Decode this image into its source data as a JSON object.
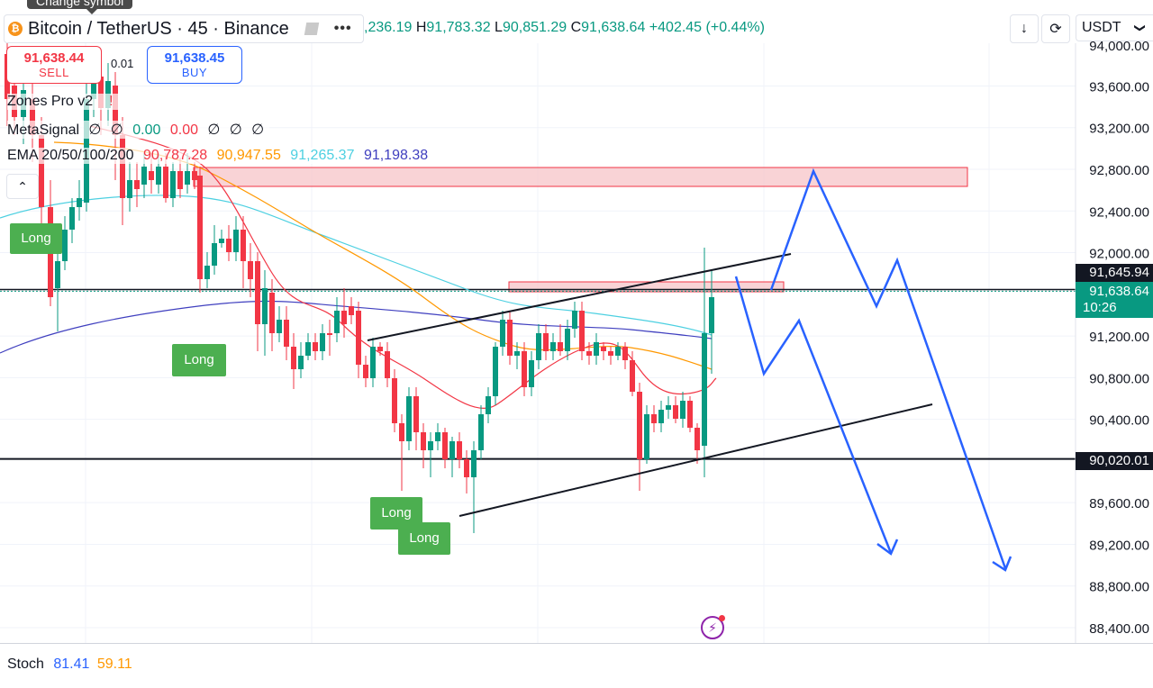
{
  "tooltip": "Change symbol",
  "symbol": {
    "name": "Bitcoin / TetherUS · 45 · Binance",
    "icon": "bitcoin-icon",
    "icon_glyph": "₿"
  },
  "ohlc": {
    "open_partial": ",236.19",
    "high_label": "H",
    "high": "91,783.32",
    "low_label": "L",
    "low": "90,851.29",
    "close_label": "C",
    "close": "91,638.64",
    "change": "+402.45 (+0.44%)"
  },
  "toolbar": {
    "download_icon": "↓",
    "refresh_icon": "⟳",
    "currency": "USDT",
    "currency_chevron": "❯"
  },
  "trade": {
    "sell_price": "91,638.44",
    "sell_label": "SELL",
    "buy_price": "91,638.45",
    "buy_label": "BUY",
    "spread": "0.01"
  },
  "indicators": {
    "zones": {
      "name": "Zones Pro v2",
      "warn": "!"
    },
    "metasignal": {
      "name": "MetaSignal",
      "sym": "∅",
      "v1": "0.00",
      "v2": "0.00"
    },
    "ema": {
      "name": "EMA 20/50/100/200",
      "v20": "90,787.28",
      "v50": "90,947.55",
      "v100": "91,265.37",
      "v200": "91,198.38"
    },
    "collapse_icon": "⌃"
  },
  "colors": {
    "up": "#089981",
    "down": "#f23645",
    "ema20": "#f23645",
    "ema50": "#ff9800",
    "ema100": "#4dd0e1",
    "ema200": "#3f3fbf",
    "forecast": "#2962ff",
    "zone_fill": "#f7c4c8",
    "long": "#4caf50"
  },
  "price_axis": {
    "ticks": [
      "93,600.00",
      "93,200.00",
      "92,800.00",
      "92,400.00",
      "92,000.00",
      "91,200.00",
      "90,800.00",
      "90,400.00",
      "89,600.00",
      "89,200.00",
      "88,800.00",
      "88,400.00"
    ],
    "top_cut": "94,000.00",
    "h_line_high": "91,645.94",
    "current_price": "91,638.64",
    "countdown": "10:26",
    "support": "90,020.01"
  },
  "signals": {
    "long_label": "Long"
  },
  "stoch": {
    "name": "Stoch",
    "k": "81.41",
    "d": "59.11",
    "k_color": "#2962ff",
    "d_color": "#ff9800"
  },
  "bolt_icon": "⚡"
}
